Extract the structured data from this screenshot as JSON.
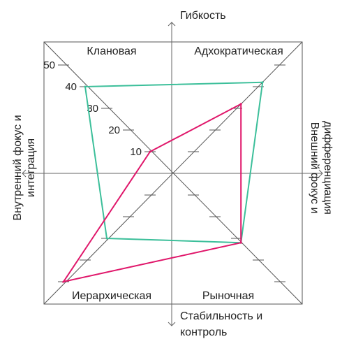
{
  "chart_data": {
    "type": "radar",
    "axis_labels": {
      "top": "Гибкость",
      "bottom_line1": "Стабильность и",
      "bottom_line2": "контроль",
      "left_line1": "Внутренний фокус и",
      "left_line2": "интеграция",
      "right_line1": "Внешний фокус и",
      "right_line2": "дифференциация"
    },
    "quadrants": [
      "Клановая",
      "Адхократическая",
      "Рыночная",
      "Иерархическая"
    ],
    "ticks": [
      10,
      20,
      30,
      40,
      50
    ],
    "max": 50,
    "series": [
      {
        "color": "#3cbf9a",
        "values": {
          "Клановая": 40,
          "Адхократическая": 42,
          "Рыночная": 32,
          "Иерархическая": 30
        }
      },
      {
        "color": "#e0166a",
        "values": {
          "Клановая": 10,
          "Адхократическая": 32,
          "Рыночная": 32,
          "Иерархическая": 50
        }
      }
    ]
  }
}
